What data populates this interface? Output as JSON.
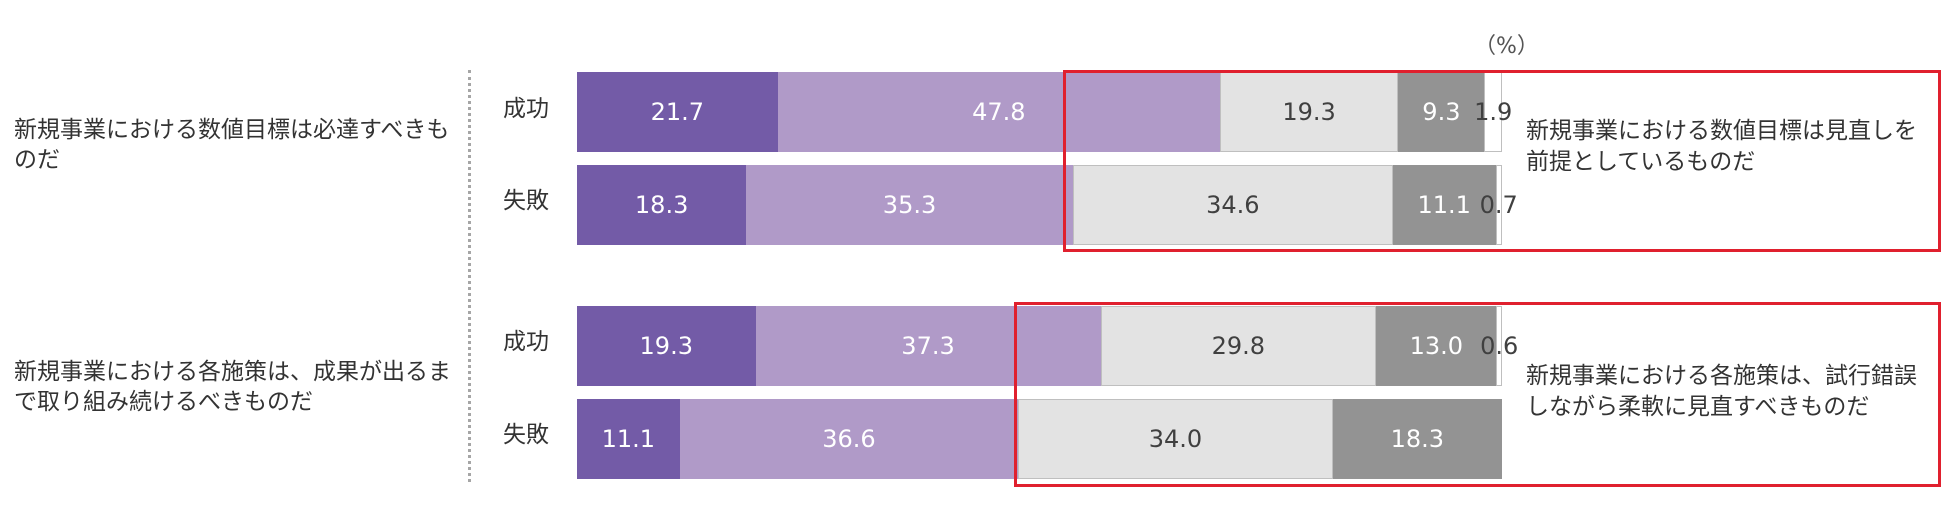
{
  "unit_label": "（%）",
  "groups": [
    {
      "left_label": "新規事業における数値目標は必達すべきものだ",
      "right_label": "新規事業における数値目標は見直しを前提としているものだ",
      "rows": [
        {
          "label": "成功",
          "values": [
            21.7,
            47.8,
            19.3,
            9.3,
            1.9
          ],
          "texts": [
            "21.7",
            "47.8",
            "19.3",
            "9.3",
            "1.9"
          ]
        },
        {
          "label": "失敗",
          "values": [
            18.3,
            35.3,
            34.6,
            11.1,
            0.7
          ],
          "texts": [
            "18.3",
            "35.3",
            "34.6",
            "11.1",
            "0.7"
          ]
        }
      ]
    },
    {
      "left_label": "新規事業における各施策は、成果が出るまで取り組み続けるべきものだ",
      "right_label": "新規事業における各施策は、試行錯誤しながら柔軟に見直すべきものだ",
      "rows": [
        {
          "label": "成功",
          "values": [
            19.3,
            37.3,
            29.8,
            13.0,
            0.6
          ],
          "texts": [
            "19.3",
            "37.3",
            "29.8",
            "13.0",
            "0.6"
          ]
        },
        {
          "label": "失敗",
          "values": [
            11.1,
            36.6,
            34.0,
            18.3,
            0.0
          ],
          "texts": [
            "11.1",
            "36.6",
            "34.0",
            "18.3",
            ""
          ]
        }
      ]
    }
  ],
  "colors": [
    "#735ba7",
    "#b09ac8",
    "#e3e3e3",
    "#939393",
    "#ffffff"
  ],
  "highlight_color": "#e0202e",
  "chart_data": {
    "type": "bar",
    "orientation": "horizontal",
    "stacked": true,
    "percent_scale": true,
    "categories": [
      "新規事業における数値目標は必達すべきものだ 成功",
      "新規事業における数値目標は必達すべきものだ 失敗",
      "新規事業における各施策は、成果が出るまで取り組み続けるべきものだ 成功",
      "新規事業における各施策は、成果が出るまで取り組み続けるべきものだ 失敗"
    ],
    "series": [
      {
        "values": [
          21.7,
          18.3,
          19.3,
          11.1
        ]
      },
      {
        "values": [
          47.8,
          35.3,
          37.3,
          36.6
        ]
      },
      {
        "values": [
          19.3,
          34.6,
          29.8,
          34.0
        ]
      },
      {
        "values": [
          9.3,
          11.1,
          13.0,
          18.3
        ]
      },
      {
        "values": [
          1.9,
          0.7,
          0.6,
          0.0
        ]
      }
    ],
    "ylim": [
      0,
      100
    ],
    "legend": "none",
    "grid": false
  }
}
